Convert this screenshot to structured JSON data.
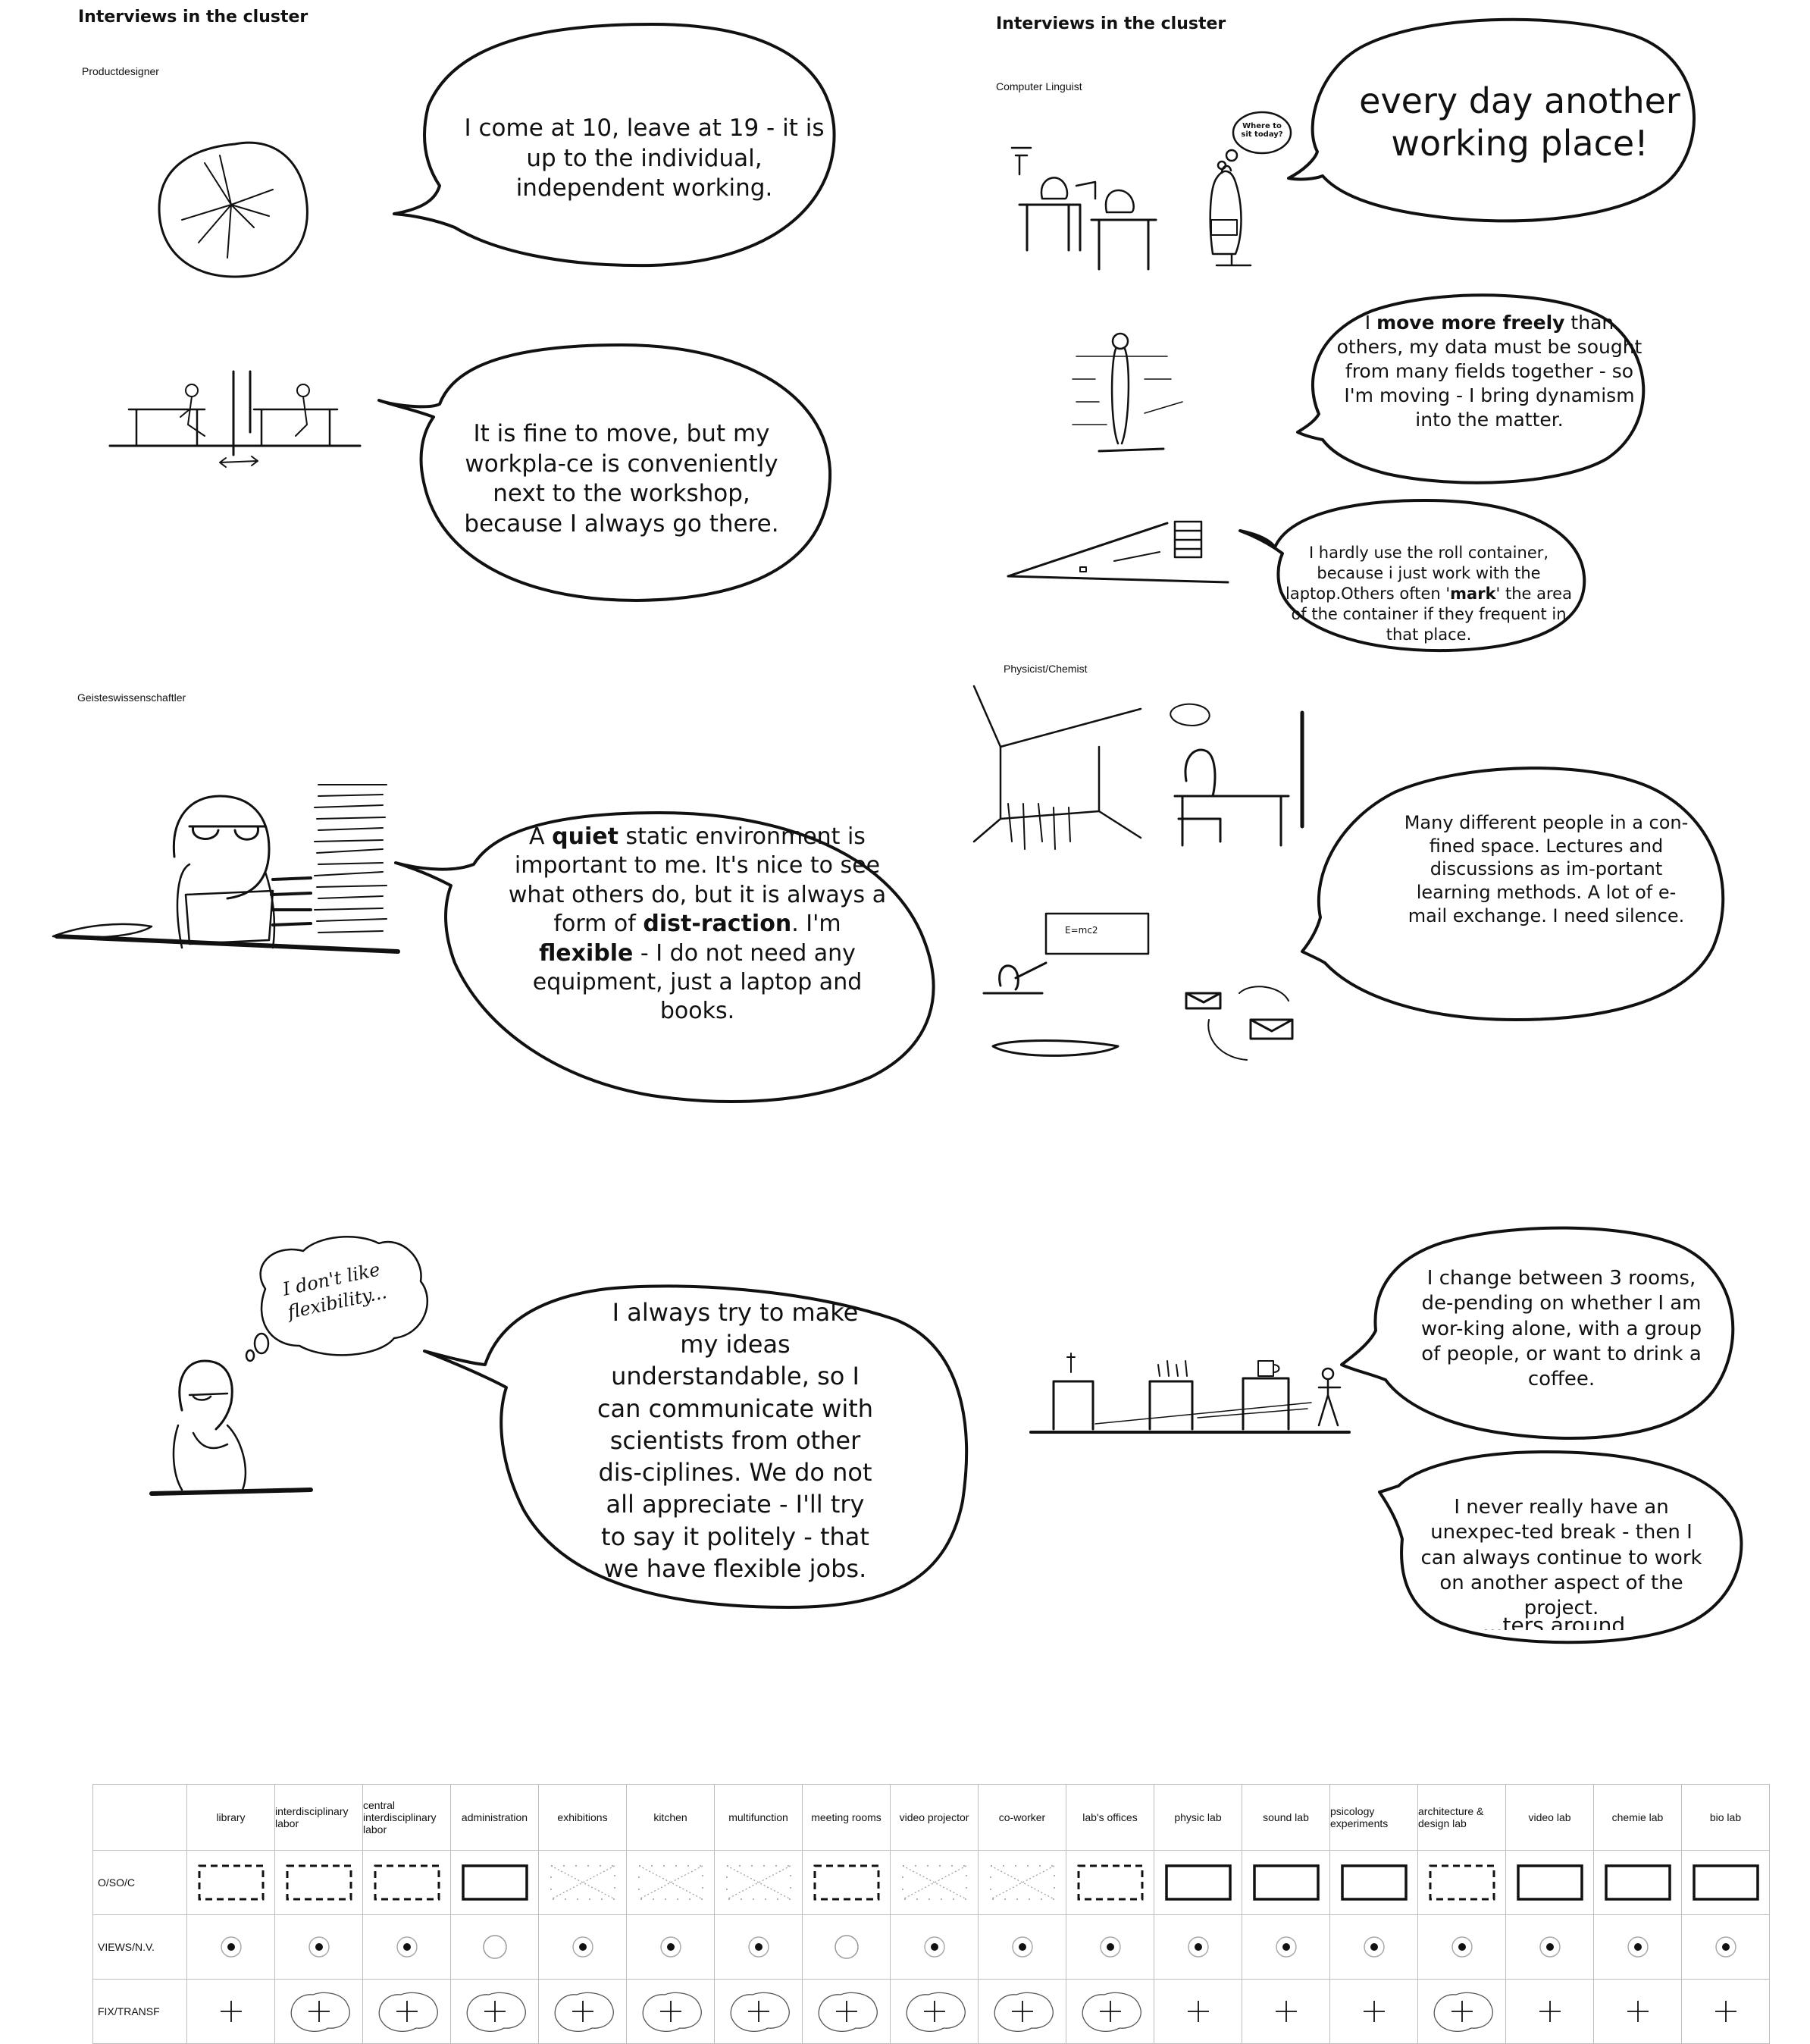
{
  "headings": {
    "left": "Interviews in the cluster",
    "right": "Interviews in the cluster"
  },
  "roles": {
    "productdesigner": "Productdesigner",
    "computer_linguist": "Computer Linguist",
    "geisteswissenschaftler": "Geisteswissenschaftler",
    "physicist_chemist": "Physicist/Chemist"
  },
  "bubbles": {
    "pd1": "I come at 10, leave at 19 - it is up to the individual, independent working.",
    "pd2": "It is fine to move, but my workpla-ce is conveniently next to the workshop, because I always go there.",
    "cl1": "every day another working place!",
    "cl2": {
      "pre": "I ",
      "bold": "move more freely",
      "post": " than others, my data must be sought from many fields together - so I'm moving - I bring dynamism into the matter."
    },
    "cl3": {
      "pre": "I hardly use the roll container, because i just work with the laptop.Others often '",
      "bold": "mark",
      "post": "' the area of the container if they frequent in that place."
    },
    "gw1": {
      "p1": "A ",
      "b1": "quiet",
      "p2": " static environment is important to me. It's nice to see what others do, but it is always a form of ",
      "b2": "dist-raction",
      "p3": ". I'm ",
      "b3": "flexible",
      "p4": " - I do not need any equipment, just a laptop and books."
    },
    "pc1": "Many different people in a con-fined space. Lectures and discussions as im-portant learning methods. A lot of e-mail exchange. I need silence.",
    "gw2": "I always try to make my ideas understandable, so I can communicate with scientists from other dis-ciplines. We do not all appreciate - I'll try to say it politely - that we have flexible jobs.",
    "pc2": "I change between 3 rooms, de-pending on whether I am wor-king alone,  with a group of people, or want to drink a coffee.",
    "pc3": "I never really have an unexpec-ted break - then I can always continue to work on another aspect of the project.",
    "pc3_cut": "...ters around"
  },
  "thoughts": {
    "where": "Where to sit today?",
    "flex": "I don't like flexibility..."
  },
  "board": "E=mc2",
  "table": {
    "columns": [
      "library",
      "interdisciplinary labor",
      "central interdisciplinary labor",
      "administration",
      "exhibitions",
      "kitchen",
      "multifunction",
      "meeting rooms",
      "video projector",
      "co-worker",
      "lab's offices",
      "physic lab",
      "sound lab",
      "psicology experiments",
      "architecture & design lab",
      "video lab",
      "chemie lab",
      "bio lab"
    ],
    "rows": [
      {
        "label": "O/SO/C",
        "marks": [
          "dashed",
          "dashed",
          "dashed",
          "solid",
          "cross",
          "cross",
          "cross",
          "dashed",
          "cross",
          "cross",
          "dashed",
          "solid",
          "solid",
          "solid",
          "dashed",
          "solid",
          "solid",
          "solid"
        ]
      },
      {
        "label": "VIEWS/N.V.",
        "marks": [
          "dot",
          "dot",
          "dot",
          "empty",
          "dot",
          "dot",
          "dot",
          "empty",
          "dot",
          "dot",
          "dot",
          "dot",
          "dot",
          "dot",
          "dot",
          "dot",
          "dot",
          "dot"
        ]
      },
      {
        "label": "FIX/TRANSF",
        "marks": [
          "plus",
          "blobplus",
          "blobplus",
          "blobplus",
          "blobplus",
          "blobplus",
          "blobplus",
          "blobplus",
          "blobplus",
          "blobplus",
          "blobplus",
          "plus",
          "plus",
          "plus",
          "blobplus",
          "plus",
          "plus",
          "plus"
        ]
      }
    ]
  },
  "colors": {
    "ink": "#111111",
    "grid": "#bdbdbd",
    "marker": "#555555"
  }
}
